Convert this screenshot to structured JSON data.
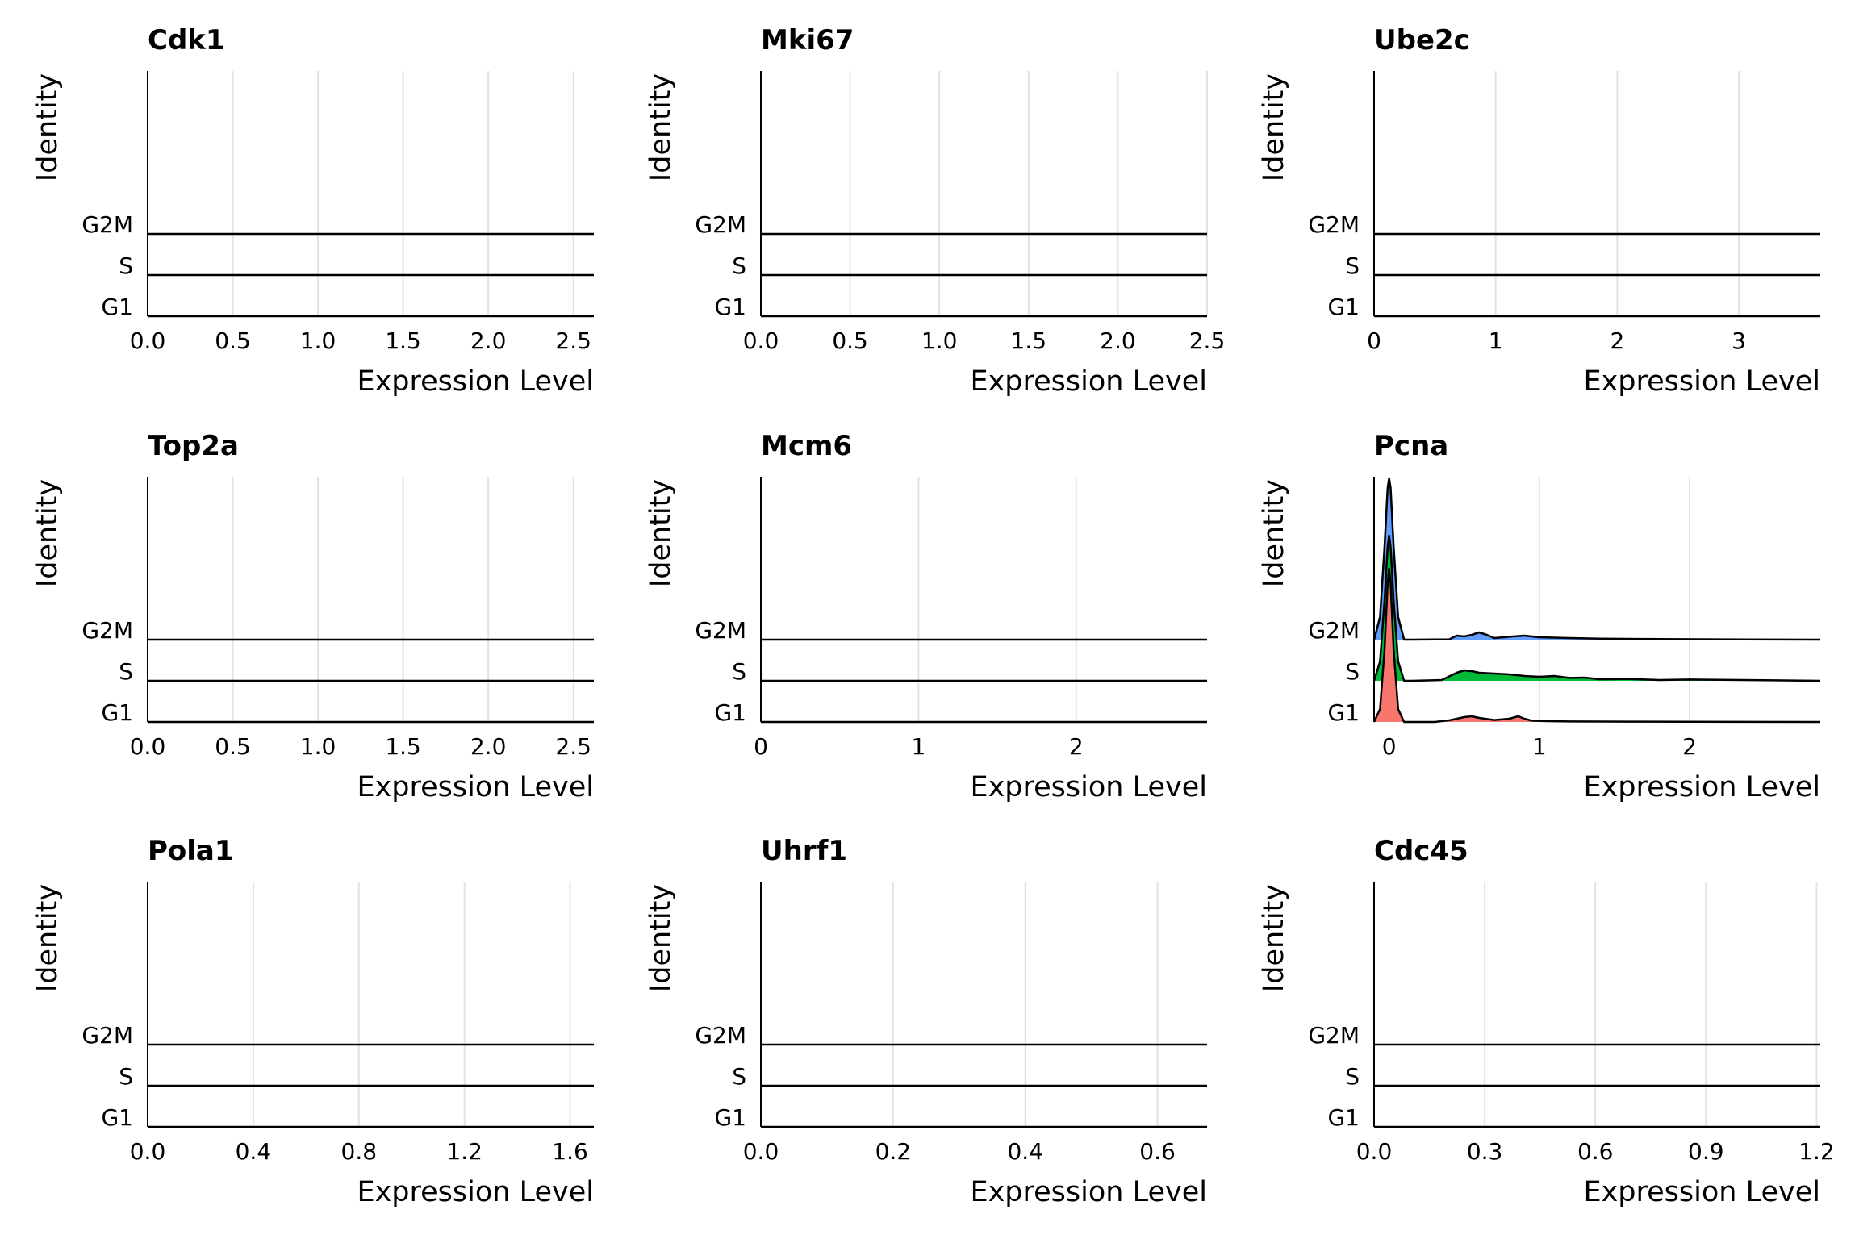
{
  "chart_data": [
    {
      "type": "ridgeline",
      "title": "Cdk1",
      "xlabel": "Expression Level",
      "ylabel": "Identity",
      "categories": [
        "G1",
        "S",
        "G2M"
      ],
      "x_ticks": [
        "0.0",
        "0.5",
        "1.0",
        "1.5",
        "2.0",
        "2.5"
      ],
      "x_tick_values": [
        0,
        0.5,
        1.0,
        1.5,
        2.0,
        2.5
      ],
      "xlim": [
        0,
        2.62
      ],
      "grid": "vertical",
      "series": [
        {
          "name": "G1",
          "color": "#F8766D",
          "x": [
            0,
            2.62
          ],
          "y": [
            0,
            0
          ]
        },
        {
          "name": "S",
          "color": "#00BA38",
          "x": [
            0,
            2.62
          ],
          "y": [
            0,
            0
          ]
        },
        {
          "name": "G2M",
          "color": "#619CFF",
          "x": [
            0,
            2.62
          ],
          "y": [
            0,
            0
          ]
        }
      ]
    },
    {
      "type": "ridgeline",
      "title": "Mki67",
      "xlabel": "Expression Level",
      "ylabel": "Identity",
      "categories": [
        "G1",
        "S",
        "G2M"
      ],
      "x_ticks": [
        "0.0",
        "0.5",
        "1.0",
        "1.5",
        "2.0",
        "2.5"
      ],
      "x_tick_values": [
        0,
        0.5,
        1.0,
        1.5,
        2.0,
        2.5
      ],
      "xlim": [
        0,
        2.5
      ],
      "grid": "vertical",
      "series": [
        {
          "name": "G1",
          "color": "#F8766D",
          "x": [
            0,
            2.5
          ],
          "y": [
            0,
            0
          ]
        },
        {
          "name": "S",
          "color": "#00BA38",
          "x": [
            0,
            2.5
          ],
          "y": [
            0,
            0
          ]
        },
        {
          "name": "G2M",
          "color": "#619CFF",
          "x": [
            0,
            2.5
          ],
          "y": [
            0,
            0
          ]
        }
      ]
    },
    {
      "type": "ridgeline",
      "title": "Ube2c",
      "xlabel": "Expression Level",
      "ylabel": "Identity",
      "categories": [
        "G1",
        "S",
        "G2M"
      ],
      "x_ticks": [
        "0",
        "1",
        "2",
        "3"
      ],
      "x_tick_values": [
        0,
        1,
        2,
        3
      ],
      "xlim": [
        0,
        3.67
      ],
      "grid": "vertical",
      "series": [
        {
          "name": "G1",
          "color": "#F8766D",
          "x": [
            0,
            3.67
          ],
          "y": [
            0,
            0
          ]
        },
        {
          "name": "S",
          "color": "#00BA38",
          "x": [
            0,
            3.67
          ],
          "y": [
            0,
            0
          ]
        },
        {
          "name": "G2M",
          "color": "#619CFF",
          "x": [
            0,
            3.67
          ],
          "y": [
            0,
            0
          ]
        }
      ]
    },
    {
      "type": "ridgeline",
      "title": "Top2a",
      "xlabel": "Expression Level",
      "ylabel": "Identity",
      "categories": [
        "G1",
        "S",
        "G2M"
      ],
      "x_ticks": [
        "0.0",
        "0.5",
        "1.0",
        "1.5",
        "2.0",
        "2.5"
      ],
      "x_tick_values": [
        0,
        0.5,
        1.0,
        1.5,
        2.0,
        2.5
      ],
      "xlim": [
        0,
        2.62
      ],
      "grid": "vertical",
      "series": [
        {
          "name": "G1",
          "color": "#F8766D",
          "x": [
            0,
            2.62
          ],
          "y": [
            0,
            0
          ]
        },
        {
          "name": "S",
          "color": "#00BA38",
          "x": [
            0,
            2.62
          ],
          "y": [
            0,
            0
          ]
        },
        {
          "name": "G2M",
          "color": "#619CFF",
          "x": [
            0,
            2.62
          ],
          "y": [
            0,
            0
          ]
        }
      ]
    },
    {
      "type": "ridgeline",
      "title": "Mcm6",
      "xlabel": "Expression Level",
      "ylabel": "Identity",
      "categories": [
        "G1",
        "S",
        "G2M"
      ],
      "x_ticks": [
        "0",
        "1",
        "2"
      ],
      "x_tick_values": [
        0,
        1,
        2
      ],
      "xlim": [
        0,
        2.83
      ],
      "grid": "vertical",
      "series": [
        {
          "name": "G1",
          "color": "#F8766D",
          "x": [
            0,
            2.83
          ],
          "y": [
            0,
            0
          ]
        },
        {
          "name": "S",
          "color": "#00BA38",
          "x": [
            0,
            2.83
          ],
          "y": [
            0,
            0
          ]
        },
        {
          "name": "G2M",
          "color": "#619CFF",
          "x": [
            0,
            2.83
          ],
          "y": [
            0,
            0
          ]
        }
      ]
    },
    {
      "type": "ridgeline",
      "title": "Pcna",
      "xlabel": "Expression Level",
      "ylabel": "Identity",
      "categories": [
        "G1",
        "S",
        "G2M"
      ],
      "x_ticks": [
        "0",
        "1",
        "2"
      ],
      "x_tick_values": [
        0,
        1,
        2
      ],
      "xlim": [
        -0.1,
        2.87
      ],
      "grid": "vertical",
      "series": [
        {
          "name": "G1",
          "color": "#F8766D",
          "x": [
            -0.1,
            -0.06,
            -0.03,
            -0.01,
            0.0,
            0.01,
            0.03,
            0.06,
            0.1,
            0.15,
            0.3,
            0.4,
            0.5,
            0.55,
            0.6,
            0.7,
            0.8,
            0.86,
            0.9,
            0.95,
            1.05,
            1.2,
            1.6,
            2.0,
            2.87
          ],
          "y": [
            0.0,
            0.08,
            0.45,
            0.86,
            0.95,
            0.86,
            0.45,
            0.08,
            0.0,
            0.0,
            0.0,
            0.01,
            0.03,
            0.035,
            0.025,
            0.012,
            0.02,
            0.035,
            0.02,
            0.008,
            0.005,
            0.003,
            0.002,
            0.001,
            0.0
          ]
        },
        {
          "name": "S",
          "color": "#00BA38",
          "x": [
            -0.1,
            -0.06,
            -0.03,
            -0.01,
            0.0,
            0.01,
            0.03,
            0.06,
            0.1,
            0.15,
            0.35,
            0.45,
            0.5,
            0.55,
            0.6,
            0.7,
            0.8,
            0.9,
            1.0,
            1.1,
            1.2,
            1.3,
            1.4,
            1.6,
            1.8,
            2.0,
            2.2,
            2.5,
            2.87
          ],
          "y": [
            0.0,
            0.12,
            0.5,
            0.83,
            0.9,
            0.83,
            0.5,
            0.12,
            0.0,
            0.0,
            0.005,
            0.05,
            0.065,
            0.06,
            0.05,
            0.045,
            0.04,
            0.03,
            0.025,
            0.03,
            0.018,
            0.02,
            0.01,
            0.012,
            0.005,
            0.008,
            0.006,
            0.004,
            0.0
          ]
        },
        {
          "name": "G2M",
          "color": "#619CFF",
          "x": [
            -0.1,
            -0.06,
            -0.03,
            -0.01,
            0.0,
            0.01,
            0.03,
            0.06,
            0.1,
            0.15,
            0.4,
            0.45,
            0.5,
            0.55,
            0.6,
            0.65,
            0.7,
            0.8,
            0.9,
            1.0,
            1.2,
            1.4,
            1.8,
            2.2,
            2.87
          ],
          "y": [
            0.0,
            0.14,
            0.58,
            0.94,
            1.0,
            0.94,
            0.58,
            0.14,
            0.0,
            0.0,
            0.002,
            0.025,
            0.02,
            0.03,
            0.045,
            0.03,
            0.01,
            0.018,
            0.025,
            0.015,
            0.01,
            0.006,
            0.004,
            0.002,
            0.0
          ]
        }
      ]
    },
    {
      "type": "ridgeline",
      "title": "Pola1",
      "xlabel": "Expression Level",
      "ylabel": "Identity",
      "categories": [
        "G1",
        "S",
        "G2M"
      ],
      "x_ticks": [
        "0.0",
        "0.4",
        "0.8",
        "1.2",
        "1.6"
      ],
      "x_tick_values": [
        0,
        0.4,
        0.8,
        1.2,
        1.6
      ],
      "xlim": [
        0,
        1.69
      ],
      "grid": "vertical",
      "series": [
        {
          "name": "G1",
          "color": "#F8766D",
          "x": [
            0,
            1.69
          ],
          "y": [
            0,
            0
          ]
        },
        {
          "name": "S",
          "color": "#00BA38",
          "x": [
            0,
            1.69
          ],
          "y": [
            0,
            0
          ]
        },
        {
          "name": "G2M",
          "color": "#619CFF",
          "x": [
            0,
            1.69
          ],
          "y": [
            0,
            0
          ]
        }
      ]
    },
    {
      "type": "ridgeline",
      "title": "Uhrf1",
      "xlabel": "Expression Level",
      "ylabel": "Identity",
      "categories": [
        "G1",
        "S",
        "G2M"
      ],
      "x_ticks": [
        "0.0",
        "0.2",
        "0.4",
        "0.6"
      ],
      "x_tick_values": [
        0,
        0.2,
        0.4,
        0.6
      ],
      "xlim": [
        0,
        0.675
      ],
      "grid": "vertical",
      "series": [
        {
          "name": "G1",
          "color": "#F8766D",
          "x": [
            0,
            0.675
          ],
          "y": [
            0,
            0
          ]
        },
        {
          "name": "S",
          "color": "#00BA38",
          "x": [
            0,
            0.675
          ],
          "y": [
            0,
            0
          ]
        },
        {
          "name": "G2M",
          "color": "#619CFF",
          "x": [
            0,
            0.675
          ],
          "y": [
            0,
            0
          ]
        }
      ]
    },
    {
      "type": "ridgeline",
      "title": "Cdc45",
      "xlabel": "Expression Level",
      "ylabel": "Identity",
      "categories": [
        "G1",
        "S",
        "G2M"
      ],
      "x_ticks": [
        "0.0",
        "0.3",
        "0.6",
        "0.9",
        "1.2"
      ],
      "x_tick_values": [
        0,
        0.3,
        0.6,
        0.9,
        1.2
      ],
      "xlim": [
        0,
        1.21
      ],
      "grid": "vertical",
      "series": [
        {
          "name": "G1",
          "color": "#F8766D",
          "x": [
            0,
            1.21
          ],
          "y": [
            0,
            0
          ]
        },
        {
          "name": "S",
          "color": "#00BA38",
          "x": [
            0,
            1.21
          ],
          "y": [
            0,
            0
          ]
        },
        {
          "name": "G2M",
          "color": "#619CFF",
          "x": [
            0,
            1.21
          ],
          "y": [
            0,
            0
          ]
        }
      ]
    }
  ]
}
